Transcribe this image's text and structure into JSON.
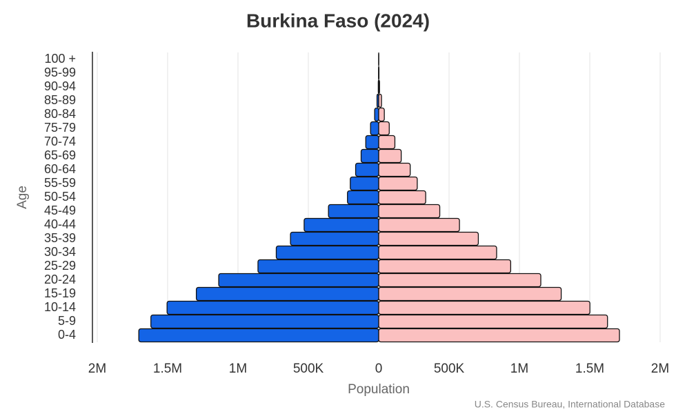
{
  "chart_data": {
    "type": "pyramid",
    "title": "Burkina Faso (2024)",
    "x_label": "Population",
    "y_label": "Age",
    "source": "U.S. Census Bureau, International Database",
    "categories": [
      "0-4",
      "5-9",
      "10-14",
      "15-19",
      "20-24",
      "25-29",
      "30-34",
      "35-39",
      "40-44",
      "45-49",
      "50-54",
      "55-59",
      "60-64",
      "65-69",
      "70-74",
      "75-79",
      "80-84",
      "85-89",
      "90-94",
      "95-99",
      "100 +"
    ],
    "series": [
      {
        "side": "left",
        "color": "#1464e6",
        "values": [
          1705000,
          1619000,
          1504000,
          1296000,
          1137000,
          858000,
          728000,
          627000,
          530000,
          357000,
          222000,
          202000,
          164000,
          125000,
          92000,
          58000,
          29000,
          12000,
          3000,
          1000,
          300
        ]
      },
      {
        "side": "right",
        "color": "#fbc0c0",
        "values": [
          1711000,
          1626000,
          1501000,
          1297000,
          1152000,
          938000,
          838000,
          708000,
          574000,
          434000,
          334000,
          274000,
          224000,
          160000,
          115000,
          75000,
          40000,
          20000,
          6000,
          2000,
          500
        ]
      }
    ],
    "xlim": [
      -2000000,
      2000000
    ],
    "xticks": [
      {
        "value": -2000000,
        "label": "2M"
      },
      {
        "value": -1500000,
        "label": "1.5M"
      },
      {
        "value": -1000000,
        "label": "1M"
      },
      {
        "value": -500000,
        "label": "500K"
      },
      0,
      {
        "value": 500000,
        "label": "500K"
      },
      {
        "value": 1000000,
        "label": "1M"
      },
      {
        "value": 1500000,
        "label": "1.5M"
      },
      {
        "value": 2000000,
        "label": "2M"
      }
    ],
    "grid": true
  }
}
